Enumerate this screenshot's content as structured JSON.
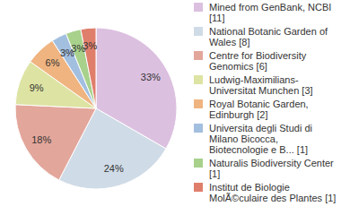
{
  "chart_data": {
    "type": "pie",
    "categories": [
      "Mined from GenBank, NCBI [11]",
      "National Botanic Garden of Wales [8]",
      "Centre for Biodiversity Genomics [6]",
      "Ludwig-Maximilians-Universitat Munchen [3]",
      "Royal Botanic Garden, Edinburgh [2]",
      "Universita degli Studi di Milano Bicocca, Biotecnologie e B... [1]",
      "Naturalis Biodiversity Center [1]",
      "Institut de Biologie MolÃ©culaire des Plantes [1]"
    ],
    "values": [
      33,
      24,
      18,
      9,
      6,
      3,
      3,
      3
    ],
    "value_labels": [
      "33%",
      "24%",
      "18%",
      "9%",
      "6%",
      "3%",
      "3%",
      "3%"
    ],
    "colors": [
      "#dcc0e0",
      "#cfdbe6",
      "#e3a69b",
      "#dde3a2",
      "#efb480",
      "#a3bfe0",
      "#a8d18c",
      "#e07e6c"
    ],
    "data_labels": true,
    "legend": "right"
  }
}
